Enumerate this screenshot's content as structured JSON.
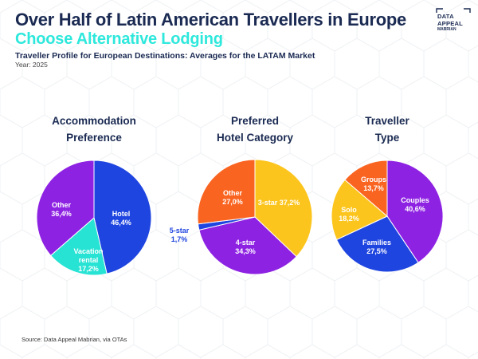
{
  "header": {
    "title_line1": "Over Half of Latin American Travellers in Europe",
    "title_line2": "Choose Alternative Lodging",
    "subtitle": "Traveller Profile for European Destinations: Averages for the LATAM Market",
    "year": "Year: 2025"
  },
  "logo": {
    "line1": "DATA",
    "line2": "APPEAL",
    "line3": "MABRIAN"
  },
  "footer": {
    "source": "Source: Data Appeal Mabrian, via OTAs"
  },
  "colors": {
    "title": "#1a2a52",
    "accent": "#2ee8dc"
  },
  "chart_data": [
    {
      "type": "pie",
      "title_lines": [
        "Accommodation",
        "Preference"
      ],
      "slices": [
        {
          "label_lines": [
            "Hotel"
          ],
          "value_text": "46,4%",
          "value": 46.4,
          "color": "#1f45e0"
        },
        {
          "label_lines": [
            "Vacation",
            "rental"
          ],
          "value_text": "17,2%",
          "value": 17.2,
          "color": "#26e3d4"
        },
        {
          "label_lines": [
            "Other"
          ],
          "value_text": "36,4%",
          "value": 36.4,
          "color": "#8e22e3"
        }
      ]
    },
    {
      "type": "pie",
      "title_lines": [
        "Preferred",
        "Hotel Category"
      ],
      "slices": [
        {
          "label_lines": [
            "3-star"
          ],
          "value_text": "37,2%",
          "value": 37.2,
          "color": "#fcc51e"
        },
        {
          "label_lines": [
            "4-star"
          ],
          "value_text": "34,3%",
          "value": 34.3,
          "color": "#8e22e3"
        },
        {
          "label_lines": [
            "5-star"
          ],
          "value_text": "1,7%",
          "value": 1.7,
          "color": "#1f45e0"
        },
        {
          "label_lines": [
            "Other"
          ],
          "value_text": "27,0%",
          "value": 27.0,
          "color": "#fa6421"
        }
      ]
    },
    {
      "type": "pie",
      "title_lines": [
        "Traveller",
        "Type"
      ],
      "slices": [
        {
          "label_lines": [
            "Couples"
          ],
          "value_text": "40,6%",
          "value": 40.6,
          "color": "#8e22e3"
        },
        {
          "label_lines": [
            "Families"
          ],
          "value_text": "27,5%",
          "value": 27.5,
          "color": "#1f45e0"
        },
        {
          "label_lines": [
            "Solo"
          ],
          "value_text": "18,2%",
          "value": 18.2,
          "color": "#fcc51e"
        },
        {
          "label_lines": [
            "Groups"
          ],
          "value_text": "13,7%",
          "value": 13.7,
          "color": "#fa6421"
        }
      ]
    }
  ]
}
